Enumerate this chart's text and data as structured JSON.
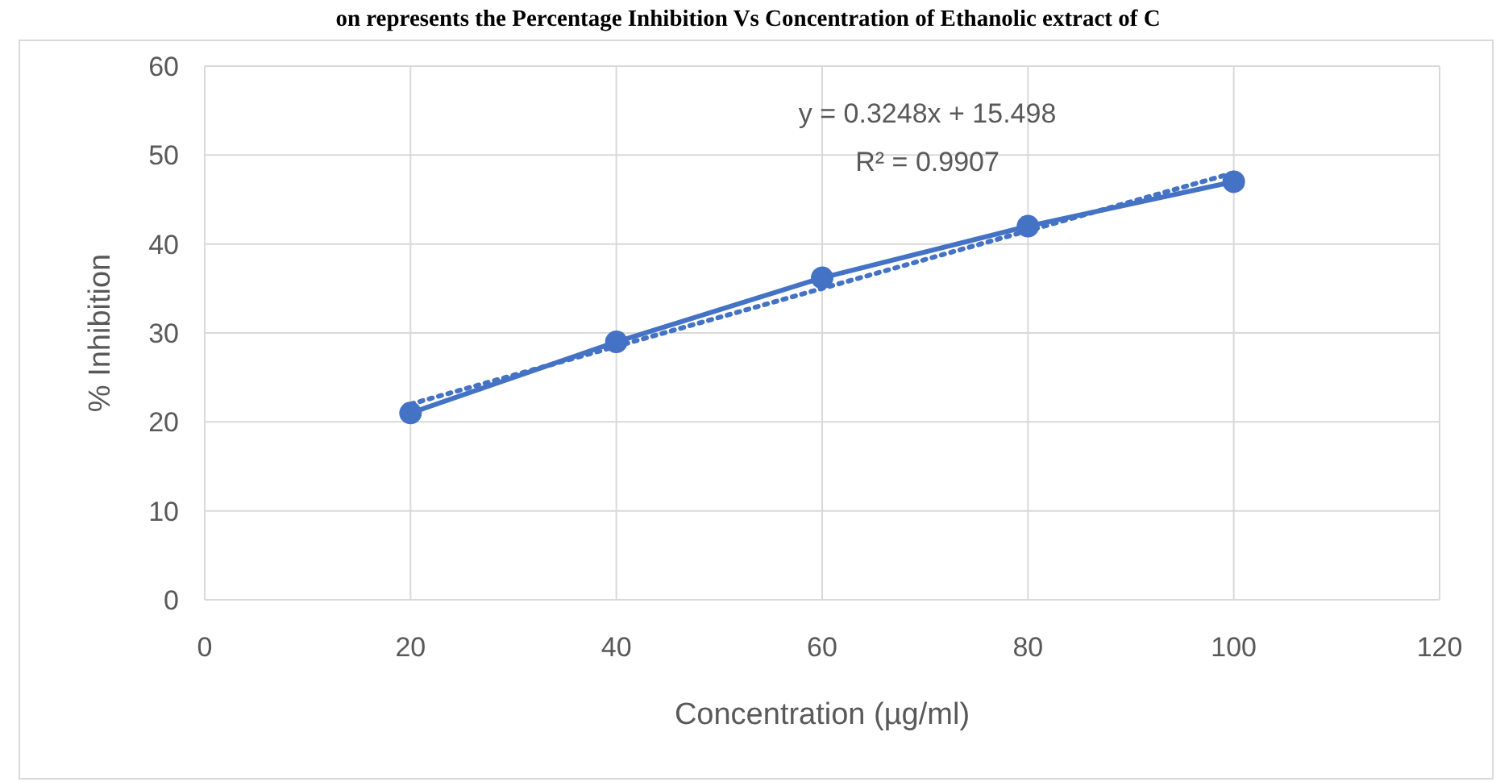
{
  "chart_data": {
    "type": "line",
    "title": "on represents the Percentage Inhibition Vs Concentration of Ethanolic extract of C",
    "xlabel": "Concentration (µg/ml)",
    "ylabel": "% Inhibition",
    "x": [
      20,
      40,
      60,
      80,
      100
    ],
    "series": [
      {
        "color": "#4472c4",
        "values": [
          21,
          29,
          36.2,
          42,
          47
        ],
        "marker": "circle",
        "line_style": "solid"
      },
      {
        "type": "line",
        "x": [
          20,
          100
        ],
        "color": "#4472c4",
        "values": [
          22,
          48
        ],
        "marker": "none",
        "line_style": "dotted"
      }
    ],
    "annotations": [
      "y = 0.3248x + 15.498",
      "R² = 0.9907"
    ],
    "xlim": [
      0,
      120
    ],
    "xticks": [
      0,
      20,
      40,
      60,
      80,
      100,
      120
    ],
    "ylim": [
      0,
      60
    ],
    "yticks": [
      0,
      10,
      20,
      30,
      40,
      50,
      60
    ],
    "grid": true
  }
}
